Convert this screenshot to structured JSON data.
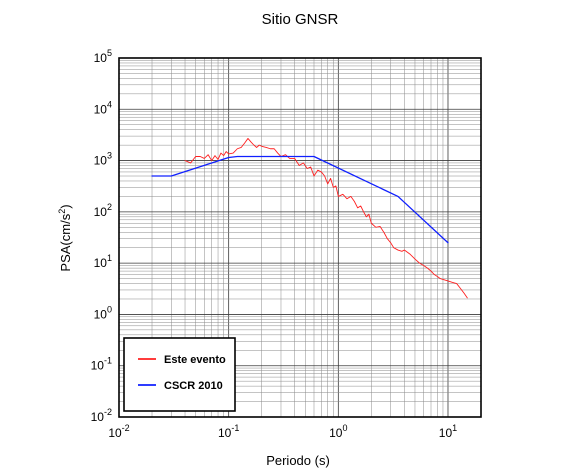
{
  "chart_data": {
    "type": "line",
    "title": "Sitio GNSR",
    "xlabel": "Periodo (s)",
    "ylabel_main": "PSA(cm/s",
    "ylabel_sup": "2",
    "ylabel_close": ")",
    "xscale": "log",
    "yscale": "log",
    "xlim": [
      0.01,
      20
    ],
    "ylim": [
      0.01,
      100000
    ],
    "grid": true,
    "legend_placement": "bottom-left",
    "x_ticks": [
      {
        "value": 0.01,
        "base": "10",
        "exp": "-2"
      },
      {
        "value": 0.1,
        "base": "10",
        "exp": "-1"
      },
      {
        "value": 1,
        "base": "10",
        "exp": "0"
      },
      {
        "value": 10,
        "base": "10",
        "exp": "1"
      }
    ],
    "y_ticks": [
      {
        "value": 0.01,
        "base": "10",
        "exp": "-2"
      },
      {
        "value": 0.1,
        "base": "10",
        "exp": "-1"
      },
      {
        "value": 1,
        "base": "10",
        "exp": "0"
      },
      {
        "value": 10,
        "base": "10",
        "exp": "1"
      },
      {
        "value": 100,
        "base": "10",
        "exp": "2"
      },
      {
        "value": 1000,
        "base": "10",
        "exp": "3"
      },
      {
        "value": 10000,
        "base": "10",
        "exp": "4"
      },
      {
        "value": 100000,
        "base": "10",
        "exp": "5"
      }
    ],
    "series": [
      {
        "name": "Este evento",
        "color": "#ff2020",
        "x": [
          0.04,
          0.045,
          0.05,
          0.055,
          0.06,
          0.065,
          0.07,
          0.075,
          0.08,
          0.085,
          0.09,
          0.095,
          0.1,
          0.11,
          0.12,
          0.13,
          0.14,
          0.15,
          0.16,
          0.17,
          0.18,
          0.19,
          0.2,
          0.22,
          0.24,
          0.26,
          0.28,
          0.3,
          0.33,
          0.36,
          0.4,
          0.44,
          0.48,
          0.52,
          0.56,
          0.6,
          0.65,
          0.7,
          0.75,
          0.8,
          0.85,
          0.9,
          0.95,
          1.0,
          1.1,
          1.2,
          1.3,
          1.4,
          1.5,
          1.6,
          1.7,
          1.8,
          1.9,
          2.0,
          2.2,
          2.4,
          2.6,
          2.8,
          3.0,
          3.2,
          3.5,
          3.8,
          4.0,
          4.5,
          5.0,
          5.5,
          6.0,
          6.5,
          7.0,
          7.5,
          8.0,
          8.5,
          9.0,
          10.0,
          11.0,
          12.0,
          13.0,
          14.0,
          15.0
        ],
        "y": [
          1000,
          900,
          1200,
          1200,
          1100,
          1300,
          1000,
          1250,
          1050,
          1400,
          1250,
          1500,
          1350,
          1400,
          1700,
          1800,
          2200,
          2700,
          2300,
          2000,
          1800,
          2000,
          1900,
          1800,
          1700,
          1700,
          1400,
          1200,
          1300,
          1100,
          1100,
          800,
          900,
          700,
          750,
          500,
          650,
          600,
          500,
          350,
          450,
          300,
          320,
          200,
          220,
          180,
          200,
          160,
          120,
          130,
          100,
          80,
          90,
          60,
          50,
          52,
          40,
          30,
          25,
          20,
          18,
          17,
          18,
          15,
          12,
          10,
          9,
          8,
          7,
          6,
          5.5,
          5,
          4.8,
          4.5,
          4.2,
          4,
          3.2,
          2.6,
          2.1
        ]
      },
      {
        "name": "CSCR 2010",
        "color": "#1020ff",
        "x": [
          0.02,
          0.03,
          0.1,
          0.12,
          0.6,
          3.5,
          10
        ],
        "y": [
          500,
          500,
          1150,
          1200,
          1200,
          200,
          25
        ]
      }
    ]
  }
}
